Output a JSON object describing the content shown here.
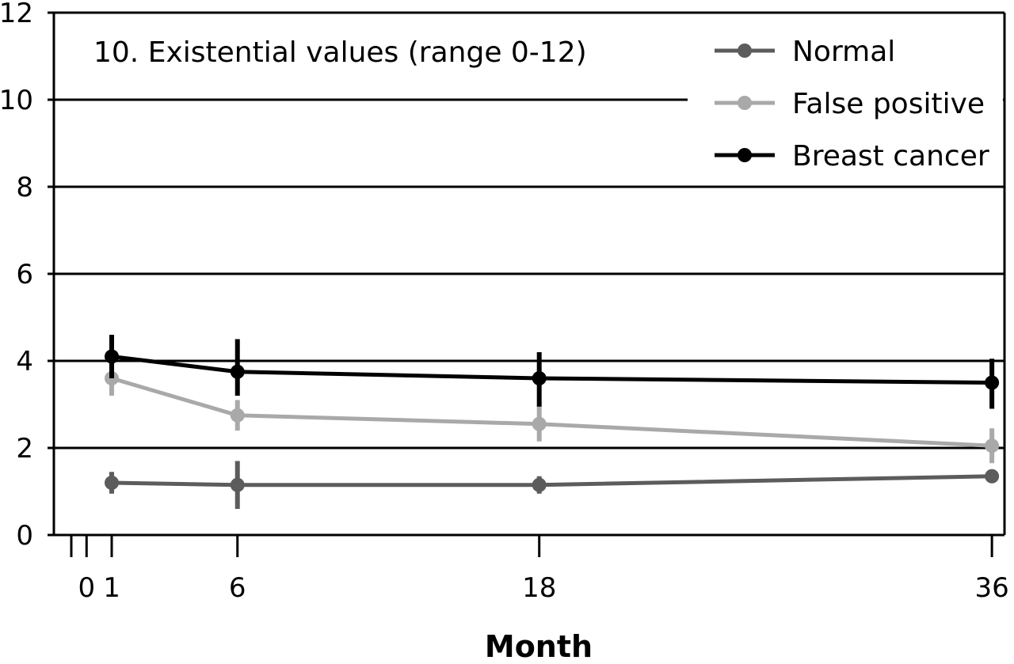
{
  "chart_data": {
    "type": "line",
    "annotation": "10. Existential values (range 0-12)",
    "xlabel": "Month",
    "ylabel": "",
    "xlim": [
      -1.3,
      36.5
    ],
    "ylim": [
      0,
      12
    ],
    "grid": "horizontal",
    "legend_position": "top-right",
    "x_ticks": [
      0,
      1,
      6,
      18,
      36
    ],
    "x_tick_labels": [
      "0",
      "1",
      "6",
      "18",
      "36"
    ],
    "y_ticks": [
      0,
      2,
      4,
      6,
      8,
      10,
      12
    ],
    "y_tick_labels": [
      "0",
      "2",
      "4",
      "6",
      "8",
      "10",
      "12"
    ],
    "x": [
      1,
      6,
      18,
      36
    ],
    "series": [
      {
        "name": "Normal",
        "color": "#5c5c5c",
        "values": [
          1.2,
          1.15,
          1.15,
          1.35
        ],
        "error_low": [
          0.95,
          0.6,
          0.95,
          1.2
        ],
        "error_high": [
          1.45,
          1.7,
          1.35,
          1.5
        ]
      },
      {
        "name": "False positive",
        "color": "#a9a9a9",
        "values": [
          3.6,
          2.75,
          2.55,
          2.05
        ],
        "error_low": [
          3.2,
          2.4,
          2.15,
          1.65
        ],
        "error_high": [
          4.0,
          3.1,
          3.0,
          2.45
        ]
      },
      {
        "name": "Breast cancer",
        "color": "#000000",
        "values": [
          4.1,
          3.75,
          3.6,
          3.5
        ],
        "error_low": [
          3.6,
          3.2,
          2.95,
          2.9
        ],
        "error_high": [
          4.6,
          4.5,
          4.2,
          4.05
        ]
      }
    ]
  }
}
